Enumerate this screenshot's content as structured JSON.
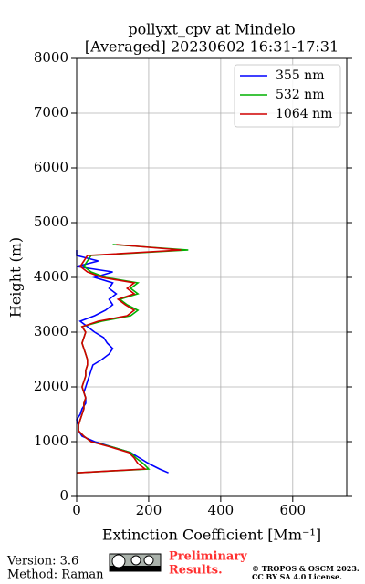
{
  "chart_data": {
    "type": "line",
    "title": "pollyxt_cpv at Mindelo",
    "subtitle": "[Averaged] 20230602 16:31-17:31",
    "xlabel": "Extinction Coefficient [Mm⁻¹]",
    "ylabel": "Height (m)",
    "y": [
      430,
      500,
      600,
      700,
      800,
      900,
      1000,
      1100,
      1200,
      1300,
      1400,
      1500,
      1600,
      1700,
      1800,
      1900,
      2000,
      2100,
      2200,
      2300,
      2400,
      2500,
      2600,
      2700,
      2800,
      2900,
      3000,
      3100,
      3200,
      3300,
      3400,
      3500,
      3600,
      3700,
      3800,
      3900,
      4000,
      4100,
      4200,
      4300,
      4400,
      4500,
      4600
    ],
    "series": [
      {
        "name": "355 nm",
        "color": "#0000ff",
        "values": [
          255,
          230,
          200,
          175,
          150,
          100,
          50,
          15,
          5,
          5,
          0,
          10,
          15,
          25,
          25,
          20,
          25,
          30,
          35,
          40,
          45,
          70,
          90,
          100,
          85,
          75,
          50,
          30,
          10,
          50,
          80,
          100,
          90,
          110,
          90,
          100,
          50,
          100,
          0,
          60,
          0,
          0,
          null
        ]
      },
      {
        "name": "532 nm",
        "color": "#00b000",
        "values": [
          0,
          200,
          185,
          165,
          150,
          100,
          40,
          20,
          5,
          5,
          10,
          15,
          20,
          20,
          25,
          20,
          15,
          20,
          25,
          25,
          30,
          30,
          25,
          20,
          15,
          20,
          25,
          15,
          70,
          150,
          170,
          140,
          120,
          170,
          150,
          170,
          80,
          40,
          20,
          30,
          40,
          310,
          100
        ]
      },
      {
        "name": "1064 nm",
        "color": "#d00000",
        "values": [
          0,
          190,
          170,
          160,
          145,
          95,
          40,
          20,
          5,
          5,
          10,
          15,
          20,
          20,
          25,
          20,
          15,
          20,
          25,
          25,
          30,
          30,
          25,
          20,
          15,
          20,
          25,
          15,
          60,
          140,
          160,
          135,
          115,
          160,
          140,
          160,
          70,
          30,
          10,
          20,
          30,
          290,
          110
        ]
      }
    ],
    "xlim": [
      0,
      750
    ],
    "xticks": [
      0,
      200,
      400,
      600
    ],
    "ylim": [
      0,
      8000
    ],
    "yticks": [
      0,
      1000,
      2000,
      3000,
      4000,
      5000,
      6000,
      7000,
      8000
    ],
    "grid": true,
    "legend": "upper right"
  },
  "footer": {
    "version": "Version: 3.6",
    "method": "Method: Raman",
    "preliminary": [
      "Preliminary",
      "Results."
    ],
    "copyright": [
      "© TROPOS & OSCM 2023.",
      "CC BY SA 4.0 License."
    ]
  }
}
